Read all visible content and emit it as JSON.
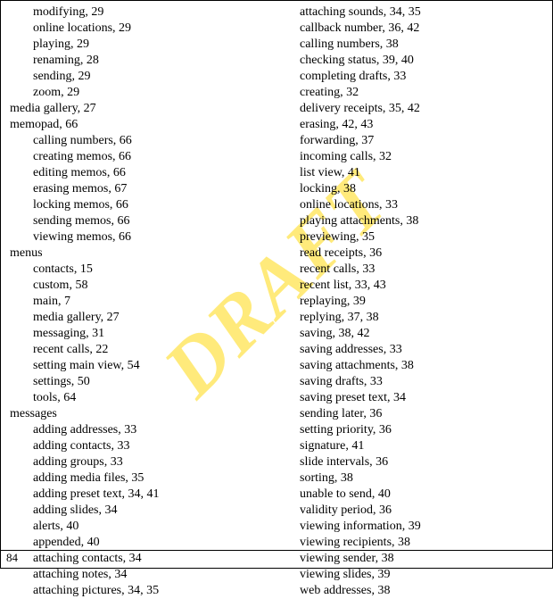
{
  "watermark": "DRAFT",
  "pageNumber": "84",
  "columns": {
    "left": [
      {
        "t": "modifying, 29",
        "s": true
      },
      {
        "t": "online locations, 29",
        "s": true
      },
      {
        "t": "playing, 29",
        "s": true
      },
      {
        "t": "renaming, 28",
        "s": true
      },
      {
        "t": "sending, 29",
        "s": true
      },
      {
        "t": "zoom, 29",
        "s": true
      },
      {
        "t": "media gallery, 27",
        "s": false
      },
      {
        "t": "memopad, 66",
        "s": false
      },
      {
        "t": "calling numbers, 66",
        "s": true
      },
      {
        "t": "creating memos, 66",
        "s": true
      },
      {
        "t": "editing memos, 66",
        "s": true
      },
      {
        "t": "erasing memos, 67",
        "s": true
      },
      {
        "t": "locking memos, 66",
        "s": true
      },
      {
        "t": "sending memos, 66",
        "s": true
      },
      {
        "t": "viewing memos, 66",
        "s": true
      },
      {
        "t": "menus",
        "s": false
      },
      {
        "t": "contacts, 15",
        "s": true
      },
      {
        "t": "custom, 58",
        "s": true
      },
      {
        "t": "main, 7",
        "s": true
      },
      {
        "t": "media gallery, 27",
        "s": true
      },
      {
        "t": "messaging, 31",
        "s": true
      },
      {
        "t": "recent calls, 22",
        "s": true
      },
      {
        "t": "setting main view, 54",
        "s": true
      },
      {
        "t": "settings, 50",
        "s": true
      },
      {
        "t": "tools, 64",
        "s": true
      },
      {
        "t": "messages",
        "s": false
      },
      {
        "t": "adding addresses, 33",
        "s": true
      },
      {
        "t": "adding contacts, 33",
        "s": true
      },
      {
        "t": "adding groups, 33",
        "s": true
      },
      {
        "t": "adding media files, 35",
        "s": true
      },
      {
        "t": "adding preset text, 34, 41",
        "s": true
      },
      {
        "t": "adding slides, 34",
        "s": true
      },
      {
        "t": "alerts, 40",
        "s": true
      },
      {
        "t": "appended, 40",
        "s": true
      },
      {
        "t": "attaching contacts, 34",
        "s": true
      },
      {
        "t": "attaching notes, 34",
        "s": true
      },
      {
        "t": "attaching pictures, 34, 35",
        "s": true
      }
    ],
    "right": [
      {
        "t": "attaching sounds, 34, 35",
        "s": true
      },
      {
        "t": "callback number, 36, 42",
        "s": true
      },
      {
        "t": "calling numbers, 38",
        "s": true
      },
      {
        "t": "checking status, 39, 40",
        "s": true
      },
      {
        "t": "completing drafts, 33",
        "s": true
      },
      {
        "t": "creating, 32",
        "s": true
      },
      {
        "t": "delivery receipts, 35, 42",
        "s": true
      },
      {
        "t": "erasing, 42, 43",
        "s": true
      },
      {
        "t": "forwarding, 37",
        "s": true
      },
      {
        "t": "incoming calls, 32",
        "s": true
      },
      {
        "t": "list view, 41",
        "s": true
      },
      {
        "t": "locking, 38",
        "s": true
      },
      {
        "t": "online locations, 33",
        "s": true
      },
      {
        "t": "playing attachments, 38",
        "s": true
      },
      {
        "t": "previewing, 35",
        "s": true
      },
      {
        "t": "read receipts, 36",
        "s": true
      },
      {
        "t": "recent calls, 33",
        "s": true
      },
      {
        "t": "recent list, 33, 43",
        "s": true
      },
      {
        "t": "replaying, 39",
        "s": true
      },
      {
        "t": "replying, 37, 38",
        "s": true
      },
      {
        "t": "saving, 38, 42",
        "s": true
      },
      {
        "t": "saving addresses, 33",
        "s": true
      },
      {
        "t": "saving attachments, 38",
        "s": true
      },
      {
        "t": "saving drafts, 33",
        "s": true
      },
      {
        "t": "saving preset text, 34",
        "s": true
      },
      {
        "t": "sending later, 36",
        "s": true
      },
      {
        "t": "setting priority, 36",
        "s": true
      },
      {
        "t": "signature, 41",
        "s": true
      },
      {
        "t": "slide intervals, 36",
        "s": true
      },
      {
        "t": "sorting, 38",
        "s": true
      },
      {
        "t": "unable to send, 40",
        "s": true
      },
      {
        "t": "validity period, 36",
        "s": true
      },
      {
        "t": "viewing information, 39",
        "s": true
      },
      {
        "t": "viewing recipients, 38",
        "s": true
      },
      {
        "t": "viewing sender, 38",
        "s": true
      },
      {
        "t": "viewing slides, 39",
        "s": true
      },
      {
        "t": "web addresses, 38",
        "s": true
      }
    ]
  }
}
